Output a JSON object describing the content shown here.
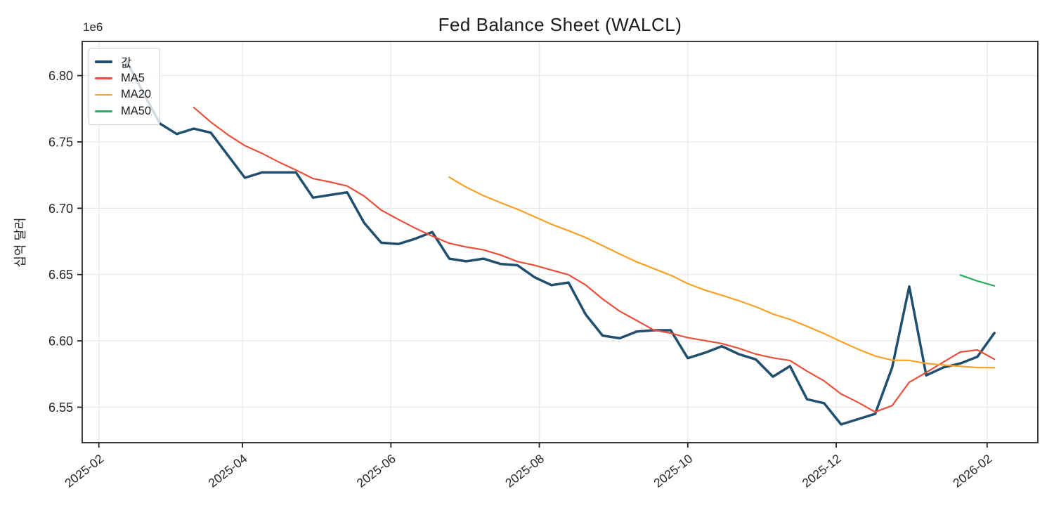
{
  "chart_data": {
    "type": "line",
    "title": "Fed Balance Sheet (WALCL)",
    "ylabel": "십억 달러",
    "scale_offset_text": "1e6",
    "grid": true,
    "legend_position": "upper left",
    "x_epoch": "2025-02-01",
    "xlim_days": [
      -6.85,
      385.85
    ],
    "ylim": [
      6523250,
      6825750
    ],
    "x": [
      "2025-02-12",
      "2025-02-19",
      "2025-02-26",
      "2025-03-05",
      "2025-03-12",
      "2025-03-19",
      "2025-03-26",
      "2025-04-02",
      "2025-04-09",
      "2025-04-16",
      "2025-04-23",
      "2025-04-30",
      "2025-05-07",
      "2025-05-14",
      "2025-05-21",
      "2025-05-28",
      "2025-06-04",
      "2025-06-11",
      "2025-06-18",
      "2025-06-25",
      "2025-07-02",
      "2025-07-09",
      "2025-07-16",
      "2025-07-23",
      "2025-07-30",
      "2025-08-06",
      "2025-08-13",
      "2025-08-20",
      "2025-08-27",
      "2025-09-03",
      "2025-09-10",
      "2025-09-17",
      "2025-09-24",
      "2025-10-01",
      "2025-10-08",
      "2025-10-15",
      "2025-10-22",
      "2025-10-29",
      "2025-11-05",
      "2025-11-12",
      "2025-11-19",
      "2025-11-26",
      "2025-12-03",
      "2025-12-10",
      "2025-12-17",
      "2025-12-24",
      "2025-12-31",
      "2026-01-07",
      "2026-01-14",
      "2026-01-21",
      "2026-01-28",
      "2026-02-04"
    ],
    "series": [
      {
        "name": "값",
        "color": "#1f4e6e",
        "line_width": 3.5,
        "values": [
          6812000,
          6788000,
          6764000,
          6756000,
          6760000,
          6757000,
          6740000,
          6723000,
          6727000,
          6727000,
          6727000,
          6708000,
          6710000,
          6712000,
          6689000,
          6674000,
          6673000,
          6677000,
          6682000,
          6662000,
          6660000,
          6662000,
          6658000,
          6657000,
          6648000,
          6642000,
          6644000,
          6620000,
          6604000,
          6602000,
          6607000,
          6608000,
          6608000,
          6587000,
          6591000,
          6596000,
          6590000,
          6586000,
          6573000,
          6581000,
          6556000,
          6553000,
          6537000,
          6541000,
          6545000,
          6580000,
          6641000,
          6574000,
          6580000,
          6583000,
          6588000,
          6606000
        ]
      },
      {
        "name": "MA5",
        "color": "#e8503c",
        "line_width": 2.2,
        "derived": "rolling_mean",
        "window": 5
      },
      {
        "name": "MA20",
        "color": "#f9a125",
        "line_width": 2.2,
        "derived": "rolling_mean",
        "window": 20
      },
      {
        "name": "MA50",
        "color": "#2bad61",
        "line_width": 2.2,
        "derived": "rolling_mean",
        "window": 50
      }
    ],
    "x_ticks": [
      {
        "label": "2025-02",
        "date": "2025-02-01"
      },
      {
        "label": "2025-04",
        "date": "2025-04-01"
      },
      {
        "label": "2025-06",
        "date": "2025-06-01"
      },
      {
        "label": "2025-08",
        "date": "2025-08-01"
      },
      {
        "label": "2025-10",
        "date": "2025-10-01"
      },
      {
        "label": "2025-12",
        "date": "2025-12-01"
      },
      {
        "label": "2026-02",
        "date": "2026-02-01"
      }
    ],
    "y_ticks": [
      {
        "label": "6.55",
        "value": 6550000
      },
      {
        "label": "6.60",
        "value": 6600000
      },
      {
        "label": "6.65",
        "value": 6650000
      },
      {
        "label": "6.70",
        "value": 6700000
      },
      {
        "label": "6.75",
        "value": 6750000
      },
      {
        "label": "6.80",
        "value": 6800000
      }
    ],
    "colors": {
      "grid": "#e8e8e8",
      "spine": "#262626",
      "tick_text": "#262626"
    }
  }
}
